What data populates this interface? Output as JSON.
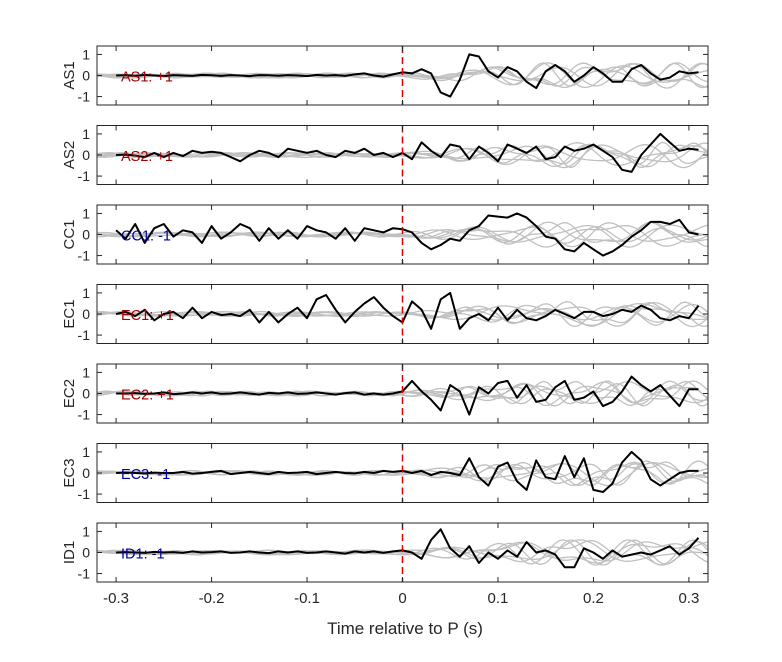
{
  "chart_data": {
    "type": "line",
    "xlabel": "Time relative to P (s)",
    "xlim": [
      -0.32,
      0.32
    ],
    "xticks": [
      -0.3,
      -0.2,
      -0.1,
      0,
      0.1,
      0.2,
      0.3
    ],
    "xtick_labels": [
      "-0.3",
      "-0.2",
      "-0.1",
      "0",
      "0.1",
      "0.2",
      "0.3"
    ],
    "ylim": [
      -1.4,
      1.4
    ],
    "yticks": [
      -1,
      0,
      1
    ],
    "ytick_labels": [
      "-1",
      "0",
      "1"
    ],
    "marker_x": 0,
    "colors": {
      "main": "#000000",
      "background_traces": "#c0c0c0",
      "marker": "#e00000",
      "polarity_positive": "#a00000",
      "polarity_negative": "#00009c"
    },
    "panels": [
      {
        "ylabel": "AS1",
        "annotation": "AS1: +1",
        "polarity": "+",
        "x": [
          -0.3,
          -0.29,
          -0.28,
          -0.27,
          -0.26,
          -0.25,
          -0.24,
          -0.23,
          -0.22,
          -0.21,
          -0.2,
          -0.19,
          -0.18,
          -0.17,
          -0.16,
          -0.15,
          -0.14,
          -0.13,
          -0.12,
          -0.11,
          -0.1,
          -0.09,
          -0.08,
          -0.07,
          -0.06,
          -0.05,
          -0.04,
          -0.03,
          -0.02,
          -0.01,
          0,
          0.01,
          0.02,
          0.03,
          0.04,
          0.05,
          0.06,
          0.07,
          0.08,
          0.09,
          0.1,
          0.11,
          0.12,
          0.13,
          0.14,
          0.15,
          0.16,
          0.17,
          0.18,
          0.19,
          0.2,
          0.21,
          0.22,
          0.23,
          0.24,
          0.25,
          0.26,
          0.27,
          0.28,
          0.29,
          0.3,
          0.31
        ],
        "y": [
          0,
          0.02,
          -0.02,
          0.03,
          0,
          -0.03,
          0.02,
          0,
          -0.02,
          0.03,
          0.01,
          -0.02,
          0.02,
          0,
          -0.03,
          0.02,
          0.01,
          -0.01,
          0.02,
          0,
          -0.03,
          0.03,
          0,
          0.02,
          -0.02,
          0.05,
          0.1,
          0,
          -0.05,
          0.05,
          0.15,
          0.1,
          0.3,
          0.1,
          -0.8,
          -1,
          -0.2,
          1,
          0.9,
          0.2,
          -0.1,
          0.4,
          0.2,
          -0.3,
          -0.6,
          0.2,
          0.5,
          0.2,
          -0.3,
          0,
          0.4,
          0.1,
          -0.3,
          -0.3,
          0.3,
          0.5,
          0.1,
          -0.2,
          -0.1,
          0.2,
          0.1,
          0.15
        ]
      },
      {
        "ylabel": "AS2",
        "annotation": "AS2: +1",
        "polarity": "+",
        "x": [
          -0.3,
          -0.29,
          -0.28,
          -0.27,
          -0.26,
          -0.25,
          -0.24,
          -0.23,
          -0.22,
          -0.21,
          -0.2,
          -0.19,
          -0.18,
          -0.17,
          -0.16,
          -0.15,
          -0.14,
          -0.13,
          -0.12,
          -0.11,
          -0.1,
          -0.09,
          -0.08,
          -0.07,
          -0.06,
          -0.05,
          -0.04,
          -0.03,
          -0.02,
          -0.01,
          0,
          0.01,
          0.02,
          0.03,
          0.04,
          0.05,
          0.06,
          0.07,
          0.08,
          0.09,
          0.1,
          0.11,
          0.12,
          0.13,
          0.14,
          0.15,
          0.16,
          0.17,
          0.18,
          0.19,
          0.2,
          0.21,
          0.22,
          0.23,
          0.24,
          0.25,
          0.26,
          0.27,
          0.28,
          0.29,
          0.3,
          0.31
        ],
        "y": [
          0,
          0.02,
          -0.03,
          -0.1,
          0.1,
          -0.1,
          0.1,
          -0.05,
          0.2,
          0.1,
          0.15,
          0.1,
          -0.1,
          -0.3,
          0,
          0.2,
          0.1,
          -0.1,
          0.3,
          0.2,
          0.1,
          0.2,
          0,
          -0.1,
          0.2,
          0.1,
          0.3,
          0,
          0.1,
          -0.1,
          0.1,
          -0.2,
          0.6,
          0.2,
          -0.1,
          0.5,
          0.4,
          -0.2,
          0.4,
          0.1,
          -0.3,
          0.5,
          0.3,
          0.1,
          0.4,
          -0.2,
          -0.1,
          0.4,
          0.2,
          0.3,
          0.5,
          0.2,
          -0.1,
          -0.7,
          -0.8,
          0,
          0.5,
          1,
          0.6,
          0.2,
          0.3,
          0.25
        ]
      },
      {
        "ylabel": "CC1",
        "annotation": "CC1: -1",
        "polarity": "-",
        "x": [
          -0.3,
          -0.29,
          -0.28,
          -0.27,
          -0.26,
          -0.25,
          -0.24,
          -0.23,
          -0.22,
          -0.21,
          -0.2,
          -0.19,
          -0.18,
          -0.17,
          -0.16,
          -0.15,
          -0.14,
          -0.13,
          -0.12,
          -0.11,
          -0.1,
          -0.09,
          -0.08,
          -0.07,
          -0.06,
          -0.05,
          -0.04,
          -0.03,
          -0.02,
          -0.01,
          0,
          0.01,
          0.02,
          0.03,
          0.04,
          0.05,
          0.06,
          0.07,
          0.08,
          0.09,
          0.1,
          0.11,
          0.12,
          0.13,
          0.14,
          0.15,
          0.16,
          0.17,
          0.18,
          0.19,
          0.2,
          0.21,
          0.22,
          0.23,
          0.24,
          0.25,
          0.26,
          0.27,
          0.28,
          0.29,
          0.3,
          0.31
        ],
        "y": [
          0.2,
          -0.2,
          0.5,
          -0.4,
          0.3,
          0.5,
          -0.1,
          0.2,
          0.1,
          -0.4,
          0.4,
          -0.2,
          0.1,
          0.5,
          0.3,
          -0.3,
          0.3,
          -0.2,
          0.2,
          -0.2,
          0.4,
          0.2,
          0.1,
          -0.2,
          0.3,
          -0.3,
          0.3,
          0.2,
          0.1,
          0.3,
          0.25,
          0.1,
          -0.4,
          -0.7,
          -0.5,
          -0.2,
          -0.3,
          0.2,
          0.4,
          0.9,
          0.85,
          0.8,
          1,
          0.8,
          0.4,
          -0.1,
          -0.2,
          -0.7,
          -0.8,
          -0.4,
          -0.7,
          -1,
          -0.8,
          -0.5,
          -0.1,
          0.2,
          0.6,
          0.6,
          0.5,
          0.7,
          0.1,
          0
        ]
      },
      {
        "ylabel": "EC1",
        "annotation": "EC1: +1",
        "polarity": "+",
        "x": [
          -0.3,
          -0.29,
          -0.28,
          -0.27,
          -0.26,
          -0.25,
          -0.24,
          -0.23,
          -0.22,
          -0.21,
          -0.2,
          -0.19,
          -0.18,
          -0.17,
          -0.16,
          -0.15,
          -0.14,
          -0.13,
          -0.12,
          -0.11,
          -0.1,
          -0.09,
          -0.08,
          -0.07,
          -0.06,
          -0.05,
          -0.04,
          -0.03,
          -0.02,
          -0.01,
          0,
          0.01,
          0.02,
          0.03,
          0.04,
          0.05,
          0.06,
          0.07,
          0.08,
          0.09,
          0.1,
          0.11,
          0.12,
          0.13,
          0.14,
          0.15,
          0.16,
          0.17,
          0.18,
          0.19,
          0.2,
          0.21,
          0.22,
          0.23,
          0.24,
          0.25,
          0.26,
          0.27,
          0.28,
          0.29,
          0.3,
          0.31
        ],
        "y": [
          0,
          0.1,
          -0.1,
          0.2,
          -0.3,
          0,
          0.1,
          -0.2,
          0.3,
          -0.2,
          0.1,
          -0.05,
          0,
          -0.1,
          0.2,
          -0.4,
          0.1,
          -0.4,
          0,
          0.3,
          -0.2,
          0.7,
          0.9,
          0.2,
          -0.4,
          0.1,
          0.5,
          0.8,
          0.3,
          -0.1,
          -0.4,
          0.6,
          0.2,
          -0.7,
          0.7,
          1,
          -0.7,
          -0.2,
          0,
          -0.3,
          0.3,
          -0.3,
          0.2,
          -0.2,
          -0.3,
          -0.1,
          0.2,
          0,
          -0.2,
          0.1,
          0.1,
          -0.1,
          0,
          0.2,
          0.1,
          0.4,
          0.2,
          -0.2,
          -0.3,
          -0.1,
          -0.2,
          0.4
        ]
      },
      {
        "ylabel": "EC2",
        "annotation": "EC2: +1",
        "polarity": "+",
        "x": [
          -0.3,
          -0.29,
          -0.28,
          -0.27,
          -0.26,
          -0.25,
          -0.24,
          -0.23,
          -0.22,
          -0.21,
          -0.2,
          -0.19,
          -0.18,
          -0.17,
          -0.16,
          -0.15,
          -0.14,
          -0.13,
          -0.12,
          -0.11,
          -0.1,
          -0.09,
          -0.08,
          -0.07,
          -0.06,
          -0.05,
          -0.04,
          -0.03,
          -0.02,
          -0.01,
          0,
          0.01,
          0.02,
          0.03,
          0.04,
          0.05,
          0.06,
          0.07,
          0.08,
          0.09,
          0.1,
          0.11,
          0.12,
          0.13,
          0.14,
          0.15,
          0.16,
          0.17,
          0.18,
          0.19,
          0.2,
          0.21,
          0.22,
          0.23,
          0.24,
          0.25,
          0.26,
          0.27,
          0.28,
          0.29,
          0.3,
          0.31
        ],
        "y": [
          0,
          0,
          0.02,
          -0.02,
          0,
          0.05,
          -0.03,
          0,
          0.05,
          0,
          0.05,
          -0.02,
          0,
          0.05,
          0,
          -0.05,
          0.03,
          0,
          0.05,
          -0.02,
          0,
          0.05,
          0,
          -0.05,
          0.02,
          0.05,
          -0.05,
          0,
          -0.05,
          0,
          0.1,
          0.6,
          0.1,
          -0.3,
          -0.8,
          0.4,
          0.1,
          -1,
          0.3,
          0,
          0.5,
          0.6,
          -0.2,
          0.4,
          -0.4,
          -0.3,
          0.3,
          0.6,
          -0.3,
          -0.2,
          0.1,
          -0.6,
          -0.4,
          0.1,
          0.8,
          0.4,
          0.1,
          0.4,
          -0.1,
          -0.6,
          0.2,
          0.2
        ]
      },
      {
        "ylabel": "EC3",
        "annotation": "EC3: -1",
        "polarity": "-",
        "x": [
          -0.3,
          -0.29,
          -0.28,
          -0.27,
          -0.26,
          -0.25,
          -0.24,
          -0.23,
          -0.22,
          -0.21,
          -0.2,
          -0.19,
          -0.18,
          -0.17,
          -0.16,
          -0.15,
          -0.14,
          -0.13,
          -0.12,
          -0.11,
          -0.1,
          -0.09,
          -0.08,
          -0.07,
          -0.06,
          -0.05,
          -0.04,
          -0.03,
          -0.02,
          -0.01,
          0,
          0.01,
          0.02,
          0.03,
          0.04,
          0.05,
          0.06,
          0.07,
          0.08,
          0.09,
          0.1,
          0.11,
          0.12,
          0.13,
          0.14,
          0.15,
          0.16,
          0.17,
          0.18,
          0.19,
          0.2,
          0.21,
          0.22,
          0.23,
          0.24,
          0.25,
          0.26,
          0.27,
          0.28,
          0.29,
          0.3,
          0.31
        ],
        "y": [
          0,
          0.02,
          0,
          -0.02,
          0.02,
          0,
          0,
          0.05,
          -0.03,
          0,
          0.05,
          0.1,
          -0.05,
          0,
          0.05,
          0,
          -0.05,
          0.05,
          0,
          0.02,
          0.05,
          -0.05,
          0,
          0.05,
          0,
          -0.02,
          0.05,
          0,
          0.1,
          0.05,
          0.1,
          0,
          0.1,
          -0.1,
          0.05,
          0,
          -0.1,
          0.7,
          -0.2,
          -0.6,
          0.3,
          0.5,
          -0.4,
          -0.8,
          0.6,
          -0.2,
          -0.3,
          0.8,
          -0.2,
          0.7,
          -0.8,
          -0.9,
          -0.5,
          0.5,
          1,
          0.6,
          -0.3,
          -0.6,
          -0.3,
          0,
          0.1,
          0.1
        ]
      },
      {
        "ylabel": "ID1",
        "annotation": "ID1: -1",
        "polarity": "-",
        "x": [
          -0.3,
          -0.29,
          -0.28,
          -0.27,
          -0.26,
          -0.25,
          -0.24,
          -0.23,
          -0.22,
          -0.21,
          -0.2,
          -0.19,
          -0.18,
          -0.17,
          -0.16,
          -0.15,
          -0.14,
          -0.13,
          -0.12,
          -0.11,
          -0.1,
          -0.09,
          -0.08,
          -0.07,
          -0.06,
          -0.05,
          -0.04,
          -0.03,
          -0.02,
          -0.01,
          0,
          0.01,
          0.02,
          0.03,
          0.04,
          0.05,
          0.06,
          0.07,
          0.08,
          0.09,
          0.1,
          0.11,
          0.12,
          0.13,
          0.14,
          0.15,
          0.16,
          0.17,
          0.18,
          0.19,
          0.2,
          0.21,
          0.22,
          0.23,
          0.24,
          0.25,
          0.26,
          0.27,
          0.28,
          0.29,
          0.3,
          0.31
        ],
        "y": [
          0,
          0.02,
          0,
          -0.02,
          0.03,
          0,
          0.02,
          -0.02,
          0.05,
          0,
          0.02,
          0.05,
          -0.02,
          0,
          0.05,
          0,
          -0.03,
          0.05,
          0,
          0.05,
          -0.02,
          0,
          0.05,
          0,
          -0.05,
          0.05,
          0,
          0.05,
          -0.02,
          0.05,
          0.1,
          0,
          -0.3,
          0.6,
          1.1,
          0.2,
          -0.2,
          0.3,
          -0.5,
          0,
          -0.3,
          0.1,
          -0.2,
          0.5,
          0,
          0.1,
          -0.1,
          -0.7,
          -0.7,
          0.2,
          0,
          -0.3,
          0.1,
          -0.2,
          -0.1,
          0,
          -0.1,
          0.1,
          0.3,
          -0.1,
          0.2,
          0.7
        ]
      }
    ]
  }
}
